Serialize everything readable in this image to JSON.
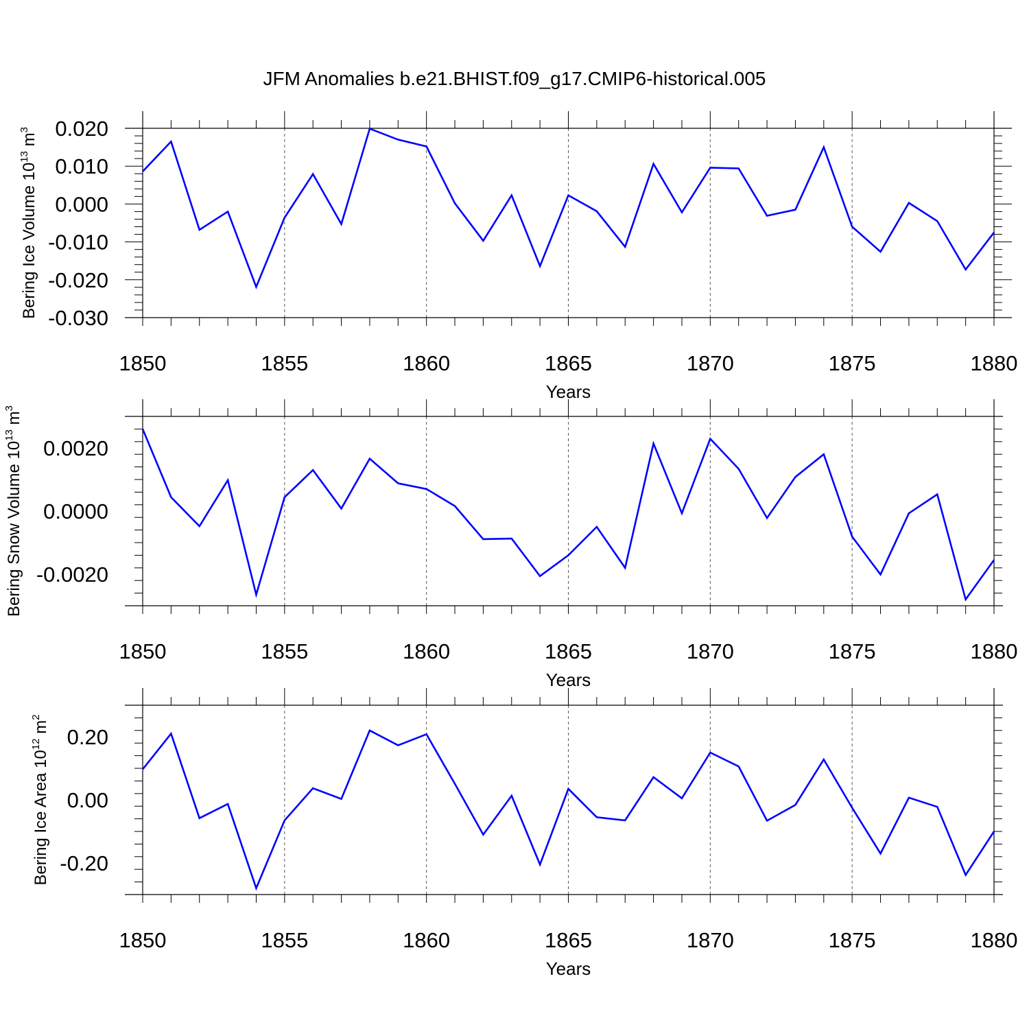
{
  "title": "JFM Anomalies b.e21.BHIST.f09_g17.CMIP6-historical.005",
  "colors": {
    "line": "#0000ff",
    "axis": "#000000",
    "grid": "#555555"
  },
  "chart_data": [
    {
      "type": "line",
      "title": "JFM Anomalies b.e21.BHIST.f09_g17.CMIP6-historical.005",
      "xlabel": "Years",
      "ylabel": {
        "text": "Bering Ice Volume 10",
        "sup": "13",
        "unit": " m",
        "unit_sup": "3"
      },
      "xlim": [
        1850,
        1880
      ],
      "ylim": [
        -0.03,
        0.02
      ],
      "xticks": [
        1850,
        1855,
        1860,
        1865,
        1870,
        1875,
        1880
      ],
      "xtick_labels": [
        "1850",
        "1855",
        "1860",
        "1865",
        "1870",
        "1875",
        "1880"
      ],
      "yticks": [
        -0.03,
        -0.02,
        -0.01,
        0.0,
        0.01,
        0.02
      ],
      "ytick_labels": [
        "-0.030",
        "-0.020",
        "-0.010",
        "0.000",
        "0.010",
        "0.020"
      ],
      "grid": "vertical dashed at major x ticks",
      "x": [
        1850,
        1851,
        1852,
        1853,
        1854,
        1855,
        1856,
        1857,
        1858,
        1859,
        1860,
        1861,
        1862,
        1863,
        1864,
        1865,
        1866,
        1867,
        1868,
        1869,
        1870,
        1871,
        1872,
        1873,
        1874,
        1875,
        1876,
        1877,
        1878,
        1879,
        1880
      ],
      "series": [
        {
          "name": "Bering Ice Volume",
          "values": [
            0.0086,
            0.0165,
            -0.0068,
            -0.002,
            -0.0219,
            -0.0036,
            0.0079,
            -0.0053,
            0.0199,
            0.017,
            0.0152,
            0.0002,
            -0.0097,
            0.0023,
            -0.0164,
            0.0023,
            -0.0019,
            -0.0113,
            0.0106,
            -0.0022,
            0.0096,
            0.0094,
            -0.0031,
            -0.0015,
            0.015,
            -0.006,
            -0.0126,
            0.0003,
            -0.0045,
            -0.0173,
            -0.0075
          ]
        }
      ]
    },
    {
      "type": "line",
      "xlabel": "Years",
      "ylabel": {
        "text": "Bering Snow Volume 10",
        "sup": "13",
        "unit": " m",
        "unit_sup": "3"
      },
      "xlim": [
        1850,
        1880
      ],
      "ylim": [
        -0.003,
        0.003
      ],
      "xticks": [
        1850,
        1855,
        1860,
        1865,
        1870,
        1875,
        1880
      ],
      "xtick_labels": [
        "1850",
        "1855",
        "1860",
        "1865",
        "1870",
        "1875",
        "1880"
      ],
      "yticks": [
        -0.002,
        0.0,
        0.002
      ],
      "ytick_labels": [
        "-0.0020",
        "0.0000",
        "0.0020"
      ],
      "grid": "vertical dashed at major x ticks",
      "x": [
        1850,
        1851,
        1852,
        1853,
        1854,
        1855,
        1856,
        1857,
        1858,
        1859,
        1860,
        1861,
        1862,
        1863,
        1864,
        1865,
        1866,
        1867,
        1868,
        1869,
        1870,
        1871,
        1872,
        1873,
        1874,
        1875,
        1876,
        1877,
        1878,
        1879,
        1880
      ],
      "series": [
        {
          "name": "Bering Snow Volume",
          "values": [
            0.0026,
            0.00044,
            -0.00048,
            0.00098,
            -0.00265,
            0.00044,
            0.0013,
            8e-05,
            0.00166,
            0.00088,
            0.0007,
            0.00016,
            -0.00089,
            -0.00087,
            -0.00206,
            -0.0014,
            -0.0005,
            -0.0018,
            0.00214,
            -7e-05,
            0.00229,
            0.00134,
            -0.00022,
            0.00108,
            0.0018,
            -0.00081,
            -0.00201,
            -7e-05,
            0.00053,
            -0.0028,
            -0.00155
          ]
        }
      ]
    },
    {
      "type": "line",
      "xlabel": "Years",
      "ylabel": {
        "text": "Bering Ice Area 10",
        "sup": "12",
        "unit": " m",
        "unit_sup": "2"
      },
      "xlim": [
        1850,
        1880
      ],
      "ylim": [
        -0.3,
        0.3
      ],
      "xticks": [
        1850,
        1855,
        1860,
        1865,
        1870,
        1875,
        1880
      ],
      "xtick_labels": [
        "1850",
        "1855",
        "1860",
        "1865",
        "1870",
        "1875",
        "1880"
      ],
      "yticks": [
        -0.2,
        0.0,
        0.2
      ],
      "ytick_labels": [
        "-0.20",
        "0.00",
        "0.20"
      ],
      "grid": "vertical dashed at major x ticks",
      "x": [
        1850,
        1851,
        1852,
        1853,
        1854,
        1855,
        1856,
        1857,
        1858,
        1859,
        1860,
        1861,
        1862,
        1863,
        1864,
        1865,
        1866,
        1867,
        1868,
        1869,
        1870,
        1871,
        1872,
        1873,
        1874,
        1875,
        1876,
        1877,
        1878,
        1879,
        1880
      ],
      "series": [
        {
          "name": "Bering Ice Area",
          "values": [
            0.097,
            0.21,
            -0.058,
            -0.013,
            -0.28,
            -0.065,
            0.037,
            0.003,
            0.22,
            0.173,
            0.208,
            0.051,
            -0.11,
            0.013,
            -0.205,
            0.035,
            -0.055,
            -0.065,
            0.072,
            0.005,
            0.15,
            0.106,
            -0.066,
            -0.016,
            0.128,
            -0.025,
            -0.17,
            0.007,
            -0.022,
            -0.238,
            -0.1
          ]
        }
      ]
    }
  ]
}
